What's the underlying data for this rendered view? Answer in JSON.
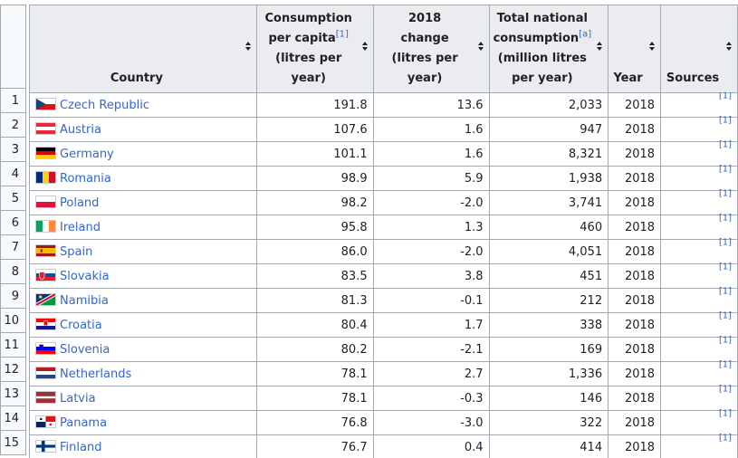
{
  "header": {
    "country": "Country",
    "per_capita": [
      "Consumption",
      "per capita",
      "(litres per year)"
    ],
    "per_capita_ref": "[1]",
    "change": [
      "2018",
      "change",
      "(litres per year)"
    ],
    "national": [
      "Total national",
      "consumption",
      "(million litres",
      "per year)"
    ],
    "national_ref": "[a]",
    "year": "Year",
    "sources": "Sources"
  },
  "rows": [
    {
      "rank": "1",
      "country": "Czech Republic",
      "flag": "cz",
      "per_capita": "191.8",
      "change": "13.6",
      "national": "2,033",
      "year": "2018",
      "source": "[1]"
    },
    {
      "rank": "2",
      "country": "Austria",
      "flag": "at",
      "per_capita": "107.6",
      "change": "1.6",
      "national": "947",
      "year": "2018",
      "source": "[1]"
    },
    {
      "rank": "3",
      "country": "Germany",
      "flag": "de",
      "per_capita": "101.1",
      "change": "1.6",
      "national": "8,321",
      "year": "2018",
      "source": "[1]"
    },
    {
      "rank": "4",
      "country": "Romania",
      "flag": "ro",
      "per_capita": "98.9",
      "change": "5.9",
      "national": "1,938",
      "year": "2018",
      "source": "[1]"
    },
    {
      "rank": "5",
      "country": "Poland",
      "flag": "pl",
      "per_capita": "98.2",
      "change": "-2.0",
      "national": "3,741",
      "year": "2018",
      "source": "[1]"
    },
    {
      "rank": "6",
      "country": "Ireland",
      "flag": "ie",
      "per_capita": "95.8",
      "change": "1.3",
      "national": "460",
      "year": "2018",
      "source": "[1]"
    },
    {
      "rank": "7",
      "country": "Spain",
      "flag": "es",
      "per_capita": "86.0",
      "change": "-2.0",
      "national": "4,051",
      "year": "2018",
      "source": "[1]"
    },
    {
      "rank": "8",
      "country": "Slovakia",
      "flag": "sk",
      "per_capita": "83.5",
      "change": "3.8",
      "national": "451",
      "year": "2018",
      "source": "[1]"
    },
    {
      "rank": "9",
      "country": "Namibia",
      "flag": "na",
      "per_capita": "81.3",
      "change": "-0.1",
      "national": "212",
      "year": "2018",
      "source": "[1]"
    },
    {
      "rank": "10",
      "country": "Croatia",
      "flag": "hr",
      "per_capita": "80.4",
      "change": "1.7",
      "national": "338",
      "year": "2018",
      "source": "[1]"
    },
    {
      "rank": "11",
      "country": "Slovenia",
      "flag": "si",
      "per_capita": "80.2",
      "change": "-2.1",
      "national": "169",
      "year": "2018",
      "source": "[1]"
    },
    {
      "rank": "12",
      "country": "Netherlands",
      "flag": "nl",
      "per_capita": "78.1",
      "change": "2.7",
      "national": "1,336",
      "year": "2018",
      "source": "[1]"
    },
    {
      "rank": "13",
      "country": "Latvia",
      "flag": "lv",
      "per_capita": "78.1",
      "change": "-0.3",
      "national": "146",
      "year": "2018",
      "source": "[1]"
    },
    {
      "rank": "14",
      "country": "Panama",
      "flag": "pa",
      "per_capita": "76.8",
      "change": "-3.0",
      "national": "322",
      "year": "2018",
      "source": "[1]"
    },
    {
      "rank": "15",
      "country": "Finland",
      "flag": "fi",
      "per_capita": "76.7",
      "change": "0.4",
      "national": "414",
      "year": "2018",
      "source": "[1]"
    }
  ],
  "colors": {
    "link": "#3366cc",
    "border": "#a2a9b1",
    "header_bg": "#eaecf0",
    "rank_bg": "#f8f9fa"
  }
}
